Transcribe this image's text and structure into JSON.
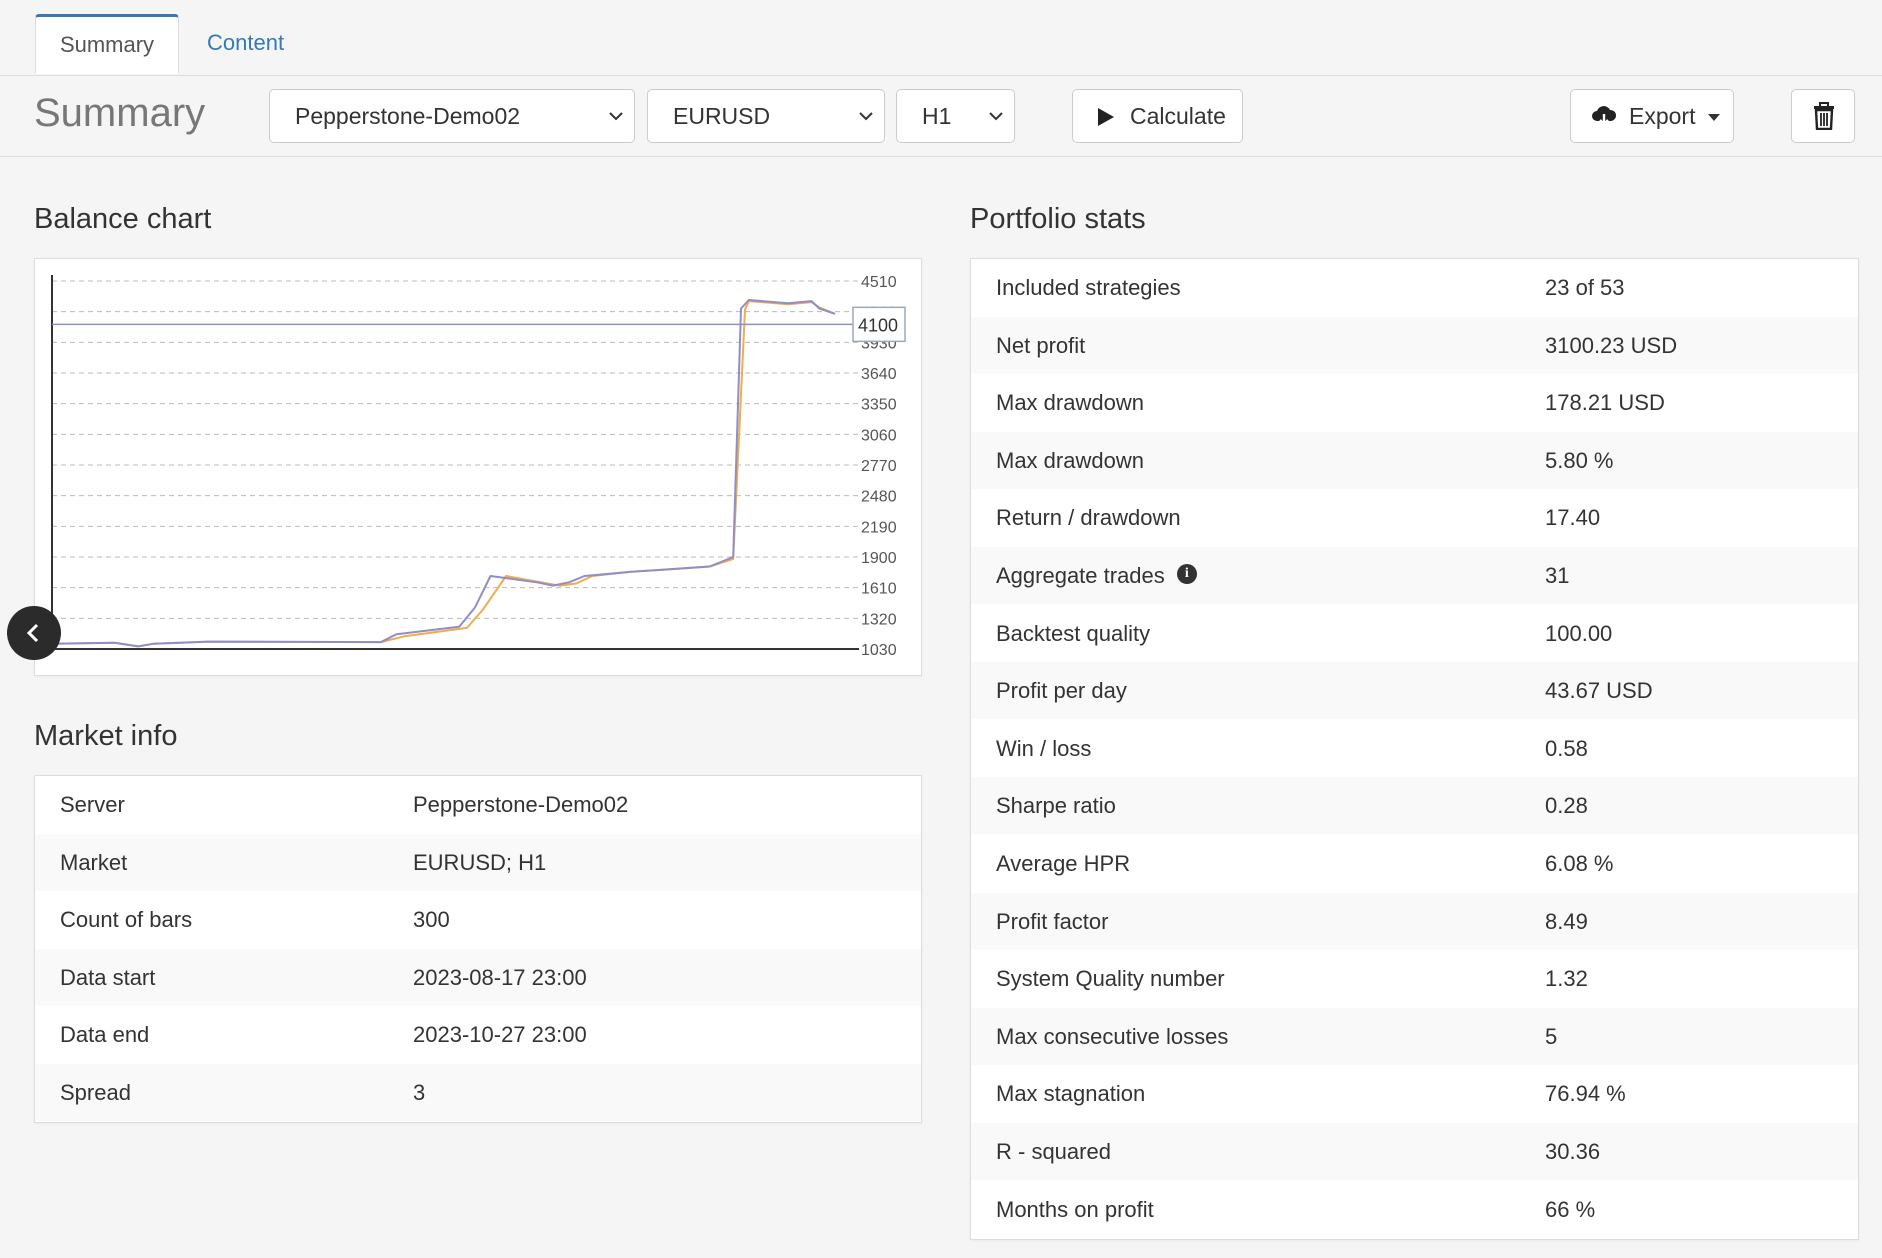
{
  "tabs": [
    {
      "label": "Summary",
      "active": true
    },
    {
      "label": "Content",
      "active": false
    }
  ],
  "toolbar": {
    "title": "Summary",
    "server_select": "Pepperstone-Demo02",
    "symbol_select": "EURUSD",
    "timeframe_select": "H1",
    "calculate_label": "Calculate",
    "export_label": "Export",
    "icons": {
      "calculate": "play-icon",
      "export": "cloud-download-icon",
      "delete": "trash-icon"
    }
  },
  "balance_chart": {
    "title": "Balance chart"
  },
  "chart_data": {
    "type": "line",
    "title": "",
    "xlabel": "",
    "ylabel": "",
    "y_ticks": [
      4510,
      4220,
      3930,
      3640,
      3350,
      3060,
      2770,
      2480,
      2190,
      1900,
      1610,
      1320,
      1030
    ],
    "ylim": [
      1030,
      4510
    ],
    "xlim": [
      0,
      100
    ],
    "grid": true,
    "crosshair_value": "4100",
    "series": [
      {
        "color": "#f0ad4e",
        "points": [
          [
            0,
            1080
          ],
          [
            8,
            1090
          ],
          [
            11,
            1055
          ],
          [
            13,
            1080
          ],
          [
            20,
            1100
          ],
          [
            42,
            1095
          ],
          [
            45,
            1150
          ],
          [
            53,
            1230
          ],
          [
            55,
            1400
          ],
          [
            58,
            1720
          ],
          [
            64,
            1640
          ],
          [
            65,
            1630
          ],
          [
            67,
            1650
          ],
          [
            69,
            1720
          ],
          [
            74,
            1760
          ],
          [
            78,
            1780
          ],
          [
            84,
            1810
          ],
          [
            87,
            1880
          ],
          [
            88.5,
            4240
          ],
          [
            89,
            4320
          ],
          [
            94,
            4290
          ],
          [
            97,
            4310
          ],
          [
            98,
            4260
          ],
          [
            100,
            4200
          ]
        ]
      },
      {
        "color": "#8e8ec9",
        "points": [
          [
            0,
            1080
          ],
          [
            8,
            1090
          ],
          [
            11,
            1055
          ],
          [
            13,
            1080
          ],
          [
            20,
            1100
          ],
          [
            42,
            1095
          ],
          [
            44,
            1170
          ],
          [
            52,
            1240
          ],
          [
            54,
            1420
          ],
          [
            56,
            1720
          ],
          [
            62,
            1660
          ],
          [
            64,
            1630
          ],
          [
            66,
            1660
          ],
          [
            68,
            1720
          ],
          [
            74,
            1760
          ],
          [
            78,
            1780
          ],
          [
            84,
            1810
          ],
          [
            87,
            1900
          ],
          [
            88,
            4250
          ],
          [
            89,
            4330
          ],
          [
            94,
            4300
          ],
          [
            97,
            4320
          ],
          [
            98,
            4250
          ],
          [
            100,
            4200
          ]
        ]
      }
    ]
  },
  "market_info": {
    "title": "Market info",
    "rows": [
      {
        "label": "Server",
        "value": "Pepperstone-Demo02"
      },
      {
        "label": "Market",
        "value": "EURUSD; H1"
      },
      {
        "label": "Count of bars",
        "value": "300"
      },
      {
        "label": "Data start",
        "value": "2023-08-17 23:00"
      },
      {
        "label": "Data end",
        "value": "2023-10-27 23:00"
      },
      {
        "label": "Spread",
        "value": "3"
      }
    ]
  },
  "portfolio_stats": {
    "title": "Portfolio stats",
    "rows": [
      {
        "label": "Included strategies",
        "value": "23 of 53"
      },
      {
        "label": "Net profit",
        "value": "3100.23 USD"
      },
      {
        "label": "Max drawdown",
        "value": "178.21 USD"
      },
      {
        "label": "Max drawdown",
        "value": "5.80 %"
      },
      {
        "label": "Return / drawdown",
        "value": "17.40"
      },
      {
        "label": "Aggregate trades",
        "value": "31",
        "info": "i"
      },
      {
        "label": "Backtest quality",
        "value": "100.00"
      },
      {
        "label": "Profit per day",
        "value": "43.67 USD"
      },
      {
        "label": "Win / loss",
        "value": "0.58"
      },
      {
        "label": "Sharpe ratio",
        "value": "0.28"
      },
      {
        "label": "Average HPR",
        "value": "6.08 %"
      },
      {
        "label": "Profit factor",
        "value": "8.49"
      },
      {
        "label": "System Quality number",
        "value": "1.32"
      },
      {
        "label": "Max consecutive losses",
        "value": "5"
      },
      {
        "label": "Max stagnation",
        "value": "76.94 %"
      },
      {
        "label": "R - squared",
        "value": "30.36"
      },
      {
        "label": "Months on profit",
        "value": "66 %"
      }
    ]
  },
  "colors": {
    "accent": "#337ab7",
    "stripe": "#f9f9f9"
  }
}
